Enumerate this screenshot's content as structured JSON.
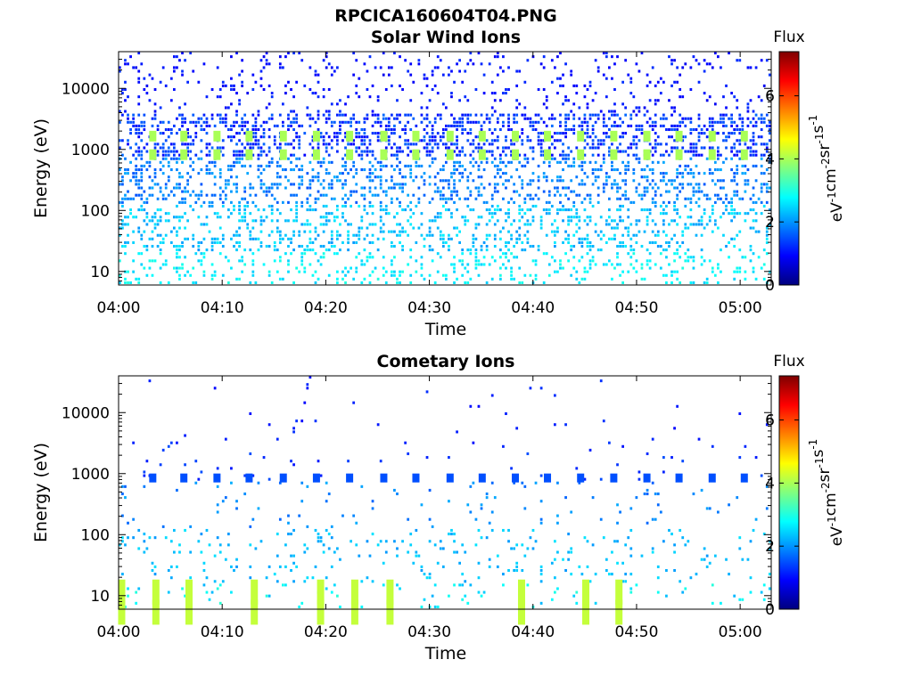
{
  "figure": {
    "title": "RPCICA160604T04.PNG"
  },
  "chart_data": [
    {
      "type": "heatmap",
      "title": "Solar Wind Ions",
      "xlabel": "Time",
      "ylabel": "Energy (eV)",
      "x_ticks": [
        "04:00",
        "04:10",
        "04:20",
        "04:30",
        "04:40",
        "04:50",
        "05:00"
      ],
      "x_range_minutes": [
        0,
        63
      ],
      "y_scale": "log",
      "y_ticks": [
        10,
        100,
        1000,
        10000
      ],
      "y_tick_labels": [
        "10",
        "100",
        "1000",
        "10000"
      ],
      "y_range": [
        6,
        40000
      ],
      "colorbar": {
        "label": "Flux",
        "unit_label": "eV-1cm-2sr-1s-1",
        "ticks": [
          0,
          2,
          4,
          6
        ],
        "range": [
          0,
          7.4
        ]
      },
      "colormap": "jet",
      "bright_blocks": {
        "times_minutes": [
          3.3,
          6.3,
          9.5,
          12.6,
          15.9,
          19.1,
          22.3,
          25.6,
          28.7,
          32.0,
          35.1,
          38.3,
          41.4,
          44.6,
          47.8,
          51.0,
          54.1,
          57.3,
          60.4
        ],
        "energies_eV": [
          820,
          1650
        ],
        "flux": 4.0
      },
      "notes": "Sparse flux pixels between ~6 eV and ~40 keV; flux ~0.8-2 above 1 keV, ~2-3 below 100 eV; bright ~4 blocks near 800 eV every ~3.2 min."
    },
    {
      "type": "heatmap",
      "title": "Cometary Ions",
      "xlabel": "Time",
      "ylabel": "Energy (eV)",
      "x_ticks": [
        "04:00",
        "04:10",
        "04:20",
        "04:30",
        "04:40",
        "04:50",
        "05:00"
      ],
      "x_range_minutes": [
        0,
        63
      ],
      "y_scale": "log",
      "y_ticks": [
        10,
        100,
        1000,
        10000
      ],
      "y_tick_labels": [
        "10",
        "100",
        "1000",
        "10000"
      ],
      "y_range": [
        6,
        40000
      ],
      "colorbar": {
        "label": "Flux",
        "unit_label": "eV-1cm-2sr-1s-1",
        "ticks": [
          0,
          2,
          4,
          6
        ],
        "range": [
          0,
          7.4
        ]
      },
      "colormap": "jet",
      "bright_blocks": {
        "times_minutes": [
          0.3,
          3.6,
          6.8,
          13.1,
          19.5,
          22.8,
          26.2,
          38.9,
          45.1,
          48.3
        ],
        "energies_eV": [
          7,
          15
        ],
        "flux": 4.2
      },
      "periodic_blocks": {
        "times_minutes": [
          3.3,
          6.3,
          9.5,
          12.6,
          15.9,
          19.1,
          22.3,
          25.6,
          28.7,
          32.0,
          35.1,
          38.3,
          41.4,
          44.6,
          47.8,
          51.0,
          54.1,
          57.3,
          60.4
        ],
        "energies_eV": [
          820
        ],
        "flux": 1.5
      },
      "notes": "Much sparser than solar wind panel; low-energy (<20 eV) streaks with flux 2.5-4.5; periodic weak blocks near 800 eV."
    }
  ]
}
